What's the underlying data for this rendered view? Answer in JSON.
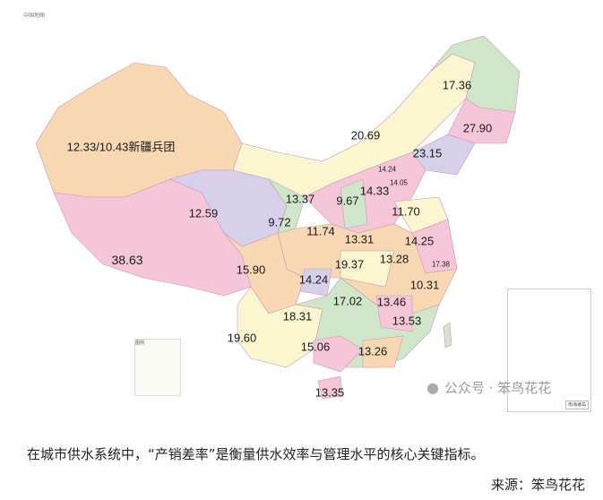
{
  "map": {
    "title": "中国地图",
    "labels": [
      {
        "id": "heilongjiang",
        "value": "17.36"
      },
      {
        "id": "jilin",
        "value": "27.90"
      },
      {
        "id": "inner-mongolia",
        "value": "20.69"
      },
      {
        "id": "liaoning",
        "value": "23.15"
      },
      {
        "id": "xinjiang",
        "value": "12.33/10.43新疆兵团"
      },
      {
        "id": "beijing",
        "value": "14.24"
      },
      {
        "id": "tianjin",
        "value": "14.05"
      },
      {
        "id": "hebei",
        "value": "14.33"
      },
      {
        "id": "ningxia",
        "value": "13.37"
      },
      {
        "id": "shanxi",
        "value": "9.67"
      },
      {
        "id": "shandong",
        "value": "11.70"
      },
      {
        "id": "qinghai",
        "value": "12.59"
      },
      {
        "id": "gansu",
        "value": "9.72"
      },
      {
        "id": "shaanxi",
        "value": "11.74"
      },
      {
        "id": "henan",
        "value": "13.31"
      },
      {
        "id": "jiangsu",
        "value": "14.25"
      },
      {
        "id": "tibet",
        "value": "38.63"
      },
      {
        "id": "anhui",
        "value": "13.28"
      },
      {
        "id": "shanghai",
        "value": "17.38"
      },
      {
        "id": "hubei",
        "value": "19.37"
      },
      {
        "id": "sichuan",
        "value": "15.90"
      },
      {
        "id": "chongqing",
        "value": "14.24"
      },
      {
        "id": "zhejiang",
        "value": "10.31"
      },
      {
        "id": "hunan",
        "value": "17.02"
      },
      {
        "id": "jiangxi",
        "value": "13.46"
      },
      {
        "id": "guizhou",
        "value": "18.31"
      },
      {
        "id": "fujian",
        "value": "13.53"
      },
      {
        "id": "yunnan",
        "value": "19.60"
      },
      {
        "id": "guangxi",
        "value": "15.06"
      },
      {
        "id": "guangdong",
        "value": "13.26"
      },
      {
        "id": "hainan",
        "value": "13.35"
      }
    ],
    "legend_title": "图例",
    "inset_label": "南海诸岛"
  },
  "watermark": "公众号 · 笨鸟花花",
  "caption": "在城市供水系统中，“产销差率”是衡量供水效率与管理水平的核心关键指标。",
  "source": "来源：笨鸟花花"
}
